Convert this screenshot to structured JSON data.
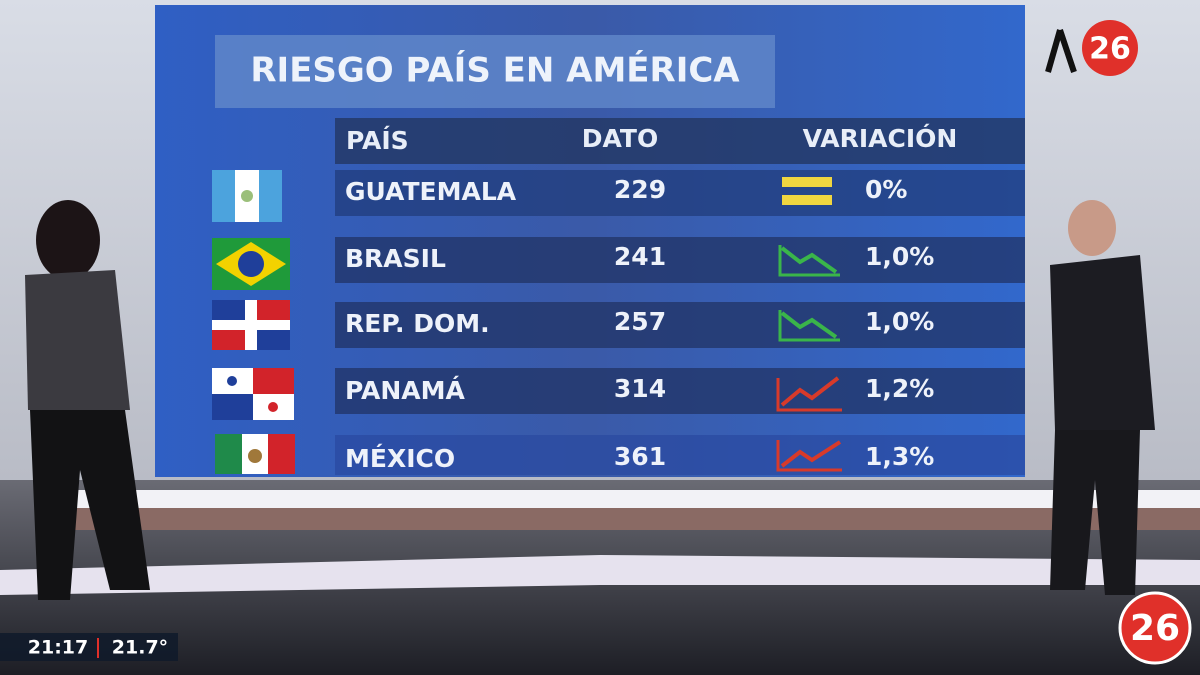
{
  "screen": {
    "title": "RIESGO PAÍS EN AMÉRICA",
    "table": {
      "headers": [
        "PAÍS",
        "DATO",
        "VARIACIÓN"
      ],
      "rows": [
        [
          "GUATEMALA",
          229,
          "0%"
        ],
        [
          "BRASIL",
          241,
          "1,0%"
        ],
        [
          "REP. DOM.",
          257,
          "1,0%"
        ],
        [
          "PANAMÁ",
          314,
          "1,2%"
        ],
        [
          "MÉXICO",
          361,
          "1,3%"
        ]
      ]
    }
  },
  "channel_logo": "26",
  "corner_logo": "26",
  "ticker": {
    "time": "21:17",
    "temperature": "21.7°"
  }
}
